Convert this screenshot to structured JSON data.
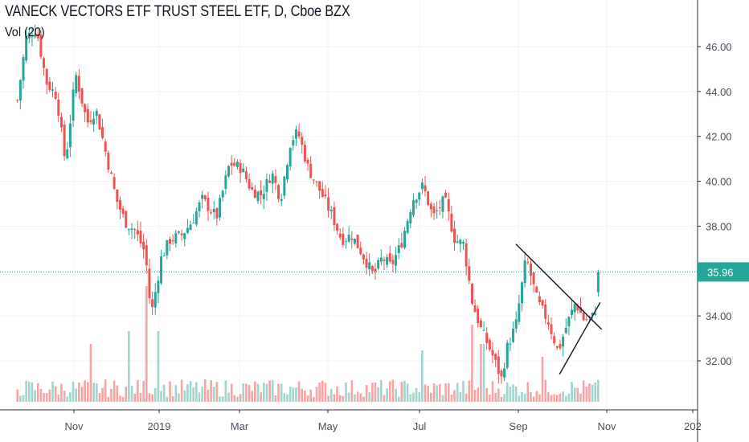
{
  "chart_data": {
    "type": "candlestick",
    "title": "VANECK VECTORS ETF TRUST STEEL ETF, D, Cboe BZX",
    "indicator_label": "Vol (20)",
    "y_ticks": [
      "46.00",
      "44.00",
      "42.00",
      "40.00",
      "38.00",
      "36.00",
      "34.00",
      "32.00"
    ],
    "y_tick_values": [
      46,
      44,
      42,
      40,
      38,
      36,
      34,
      32
    ],
    "x_ticks": [
      "Nov",
      "2019",
      "Mar",
      "May",
      "Jul",
      "Sep",
      "Nov",
      "202"
    ],
    "ylim": [
      30.5,
      47.8
    ],
    "last_price": 35.96,
    "last_price_label": "35.96",
    "colors": {
      "up": "#26a69a",
      "down": "#ef5350",
      "vol_up": "#9fd6cf",
      "vol_down": "#f5a6a4",
      "last_line": "#26a69a"
    },
    "trendlines": [
      {
        "from": [
          "2019-09-05",
          37.2
        ],
        "to": [
          "2019-11-03",
          33.4
        ]
      },
      {
        "from": [
          "2019-10-05",
          31.4
        ],
        "to": [
          "2019-11-02",
          34.6
        ]
      }
    ],
    "anchors": [
      [
        "2018-09-27",
        43.6
      ],
      [
        "2018-10-03",
        46.4
      ],
      [
        "2018-10-10",
        46.8
      ],
      [
        "2018-10-17",
        44.4
      ],
      [
        "2018-10-24",
        43.8
      ],
      [
        "2018-10-30",
        40.8
      ],
      [
        "2018-11-06",
        44.8
      ],
      [
        "2018-11-14",
        42.6
      ],
      [
        "2018-11-20",
        43.2
      ],
      [
        "2018-11-27",
        41.2
      ],
      [
        "2018-12-04",
        39.2
      ],
      [
        "2018-12-10",
        38.2
      ],
      [
        "2018-12-17",
        37.8
      ],
      [
        "2018-12-24",
        36.8
      ],
      [
        "2018-12-28",
        34.0
      ],
      [
        "2019-01-04",
        36.6
      ],
      [
        "2019-01-10",
        37.4
      ],
      [
        "2019-01-18",
        37.6
      ],
      [
        "2019-01-25",
        38.2
      ],
      [
        "2019-02-01",
        39.2
      ],
      [
        "2019-02-11",
        38.4
      ],
      [
        "2019-02-20",
        40.8
      ],
      [
        "2019-02-28",
        40.6
      ],
      [
        "2019-03-07",
        39.6
      ],
      [
        "2019-03-14",
        39.4
      ],
      [
        "2019-03-21",
        40.4
      ],
      [
        "2019-03-27",
        39.2
      ],
      [
        "2019-04-03",
        41.8
      ],
      [
        "2019-04-08",
        42.2
      ],
      [
        "2019-04-15",
        40.6
      ],
      [
        "2019-04-23",
        39.6
      ],
      [
        "2019-05-02",
        38.4
      ],
      [
        "2019-05-08",
        37.4
      ],
      [
        "2019-05-15",
        37.6
      ],
      [
        "2019-05-22",
        36.8
      ],
      [
        "2019-05-30",
        35.8
      ],
      [
        "2019-06-05",
        36.6
      ],
      [
        "2019-06-11",
        36.2
      ],
      [
        "2019-06-18",
        37.2
      ],
      [
        "2019-06-26",
        39.2
      ],
      [
        "2019-07-03",
        39.8
      ],
      [
        "2019-07-10",
        38.4
      ],
      [
        "2019-07-18",
        39.2
      ],
      [
        "2019-07-25",
        37.4
      ],
      [
        "2019-07-31",
        37.2
      ],
      [
        "2019-08-06",
        34.6
      ],
      [
        "2019-08-12",
        33.4
      ],
      [
        "2019-08-19",
        32.4
      ],
      [
        "2019-08-26",
        31.2
      ],
      [
        "2019-08-30",
        32.6
      ],
      [
        "2019-09-05",
        33.6
      ],
      [
        "2019-09-12",
        36.6
      ],
      [
        "2019-09-20",
        34.6
      ],
      [
        "2019-09-27",
        33.8
      ],
      [
        "2019-10-04",
        32.4
      ],
      [
        "2019-10-10",
        33.6
      ],
      [
        "2019-10-16",
        34.6
      ],
      [
        "2019-10-22",
        33.8
      ],
      [
        "2019-10-29",
        34.0
      ],
      [
        "2019-11-02",
        35.96
      ]
    ],
    "volume_spikes": [
      [
        "2018-12-12",
        0.55
      ],
      [
        "2018-11-16",
        0.45
      ],
      [
        "2018-12-24",
        0.9
      ],
      [
        "2019-01-02",
        0.55
      ],
      [
        "2019-07-03",
        0.4
      ],
      [
        "2019-08-06",
        0.6
      ],
      [
        "2019-08-13",
        0.45
      ],
      [
        "2019-09-23",
        0.35
      ]
    ]
  }
}
